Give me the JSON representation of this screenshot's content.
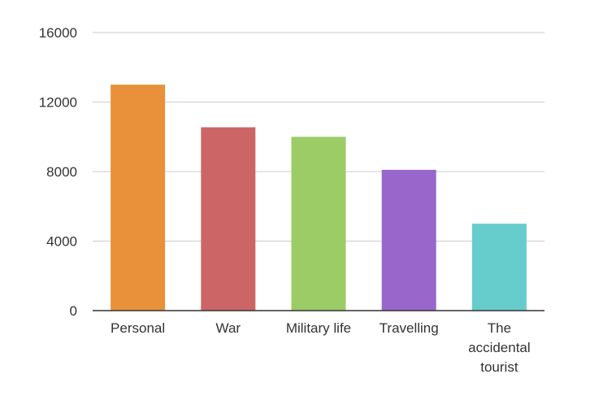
{
  "chart_data": {
    "type": "bar",
    "title": "",
    "xlabel": "",
    "ylabel": "",
    "categories": [
      "Personal",
      "War",
      "Military life",
      "Travelling",
      "The accidental tourist"
    ],
    "category_label_lines": [
      [
        "Personal"
      ],
      [
        "War"
      ],
      [
        "Military life"
      ],
      [
        "Travelling"
      ],
      [
        "The",
        "accidental",
        "tourist"
      ]
    ],
    "values": [
      13000,
      10550,
      10000,
      8100,
      5000
    ],
    "colors": [
      "#e8913a",
      "#cc6666",
      "#9ccc66",
      "#9966cc",
      "#66cccc"
    ],
    "ylim": [
      0,
      16000
    ],
    "yticks": [
      0,
      4000,
      8000,
      12000,
      16000
    ],
    "ytick_labels": [
      "0",
      "4000",
      "8000",
      "12000",
      "16000"
    ],
    "grid": true,
    "legend": "none"
  }
}
